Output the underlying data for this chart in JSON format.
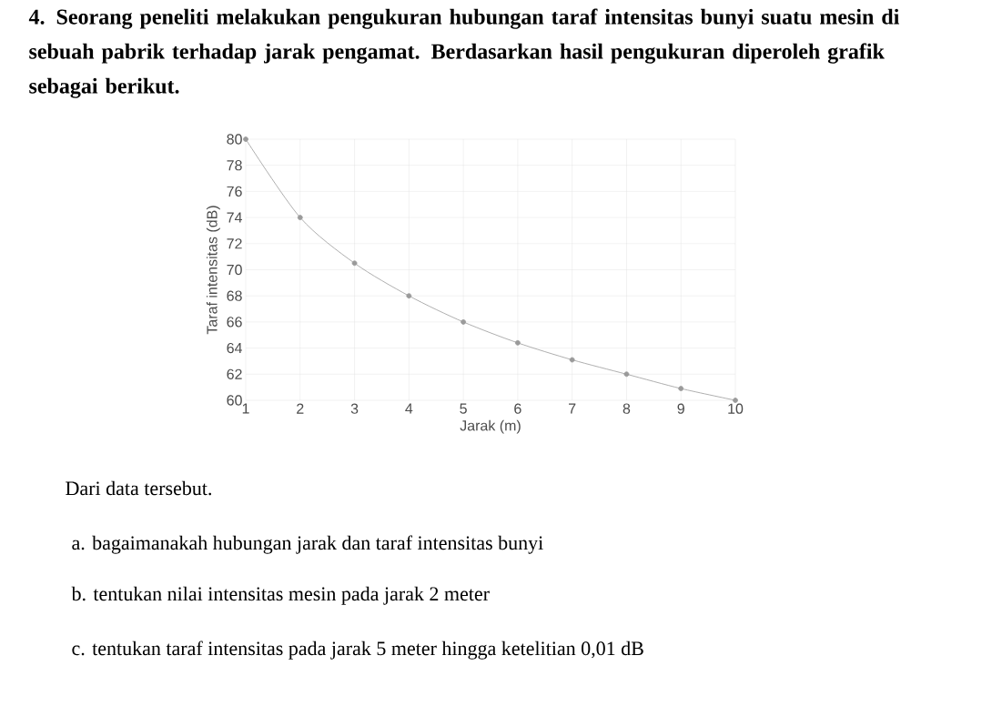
{
  "chart_data": {
    "type": "line",
    "title": "4. Seorang peneliti melakukan pengukuran hubungan taraf intensitas bunyi suatu mesin di sebuah pabrik terhadap jarak pengamat. Berdasarkan hasil pengukuran diperoleh grafik sebagai berikut.",
    "xlabel": "Jarak (m)",
    "ylabel": "Taraf intensitas (dB)",
    "x": [
      1,
      2,
      3,
      4,
      5,
      6,
      7,
      8,
      9,
      10
    ],
    "values": [
      80,
      74,
      70.5,
      68,
      66,
      64.4,
      63.1,
      62,
      60.9,
      60
    ],
    "color": "#9a9a9a",
    "marker": "circle",
    "grid": true,
    "xlim": [
      1,
      10
    ],
    "xticks": [
      1,
      2,
      3,
      4,
      5,
      6,
      7,
      8,
      9,
      10
    ],
    "ylim": [
      60,
      80
    ],
    "yticks": [
      60,
      62,
      64,
      66,
      68,
      70,
      72,
      74,
      76,
      78,
      80
    ],
    "annotations": [
      "Dari data tersebut.",
      "a. bagaimanakah hubungan jarak dan taraf intensitas bunyi",
      "b. tentukan nilai intensitas mesin pada jarak 2 meter",
      "c. tentukan taraf intensitas pada jarak 5 meter hingga ketelitian 0,01 dB"
    ]
  }
}
